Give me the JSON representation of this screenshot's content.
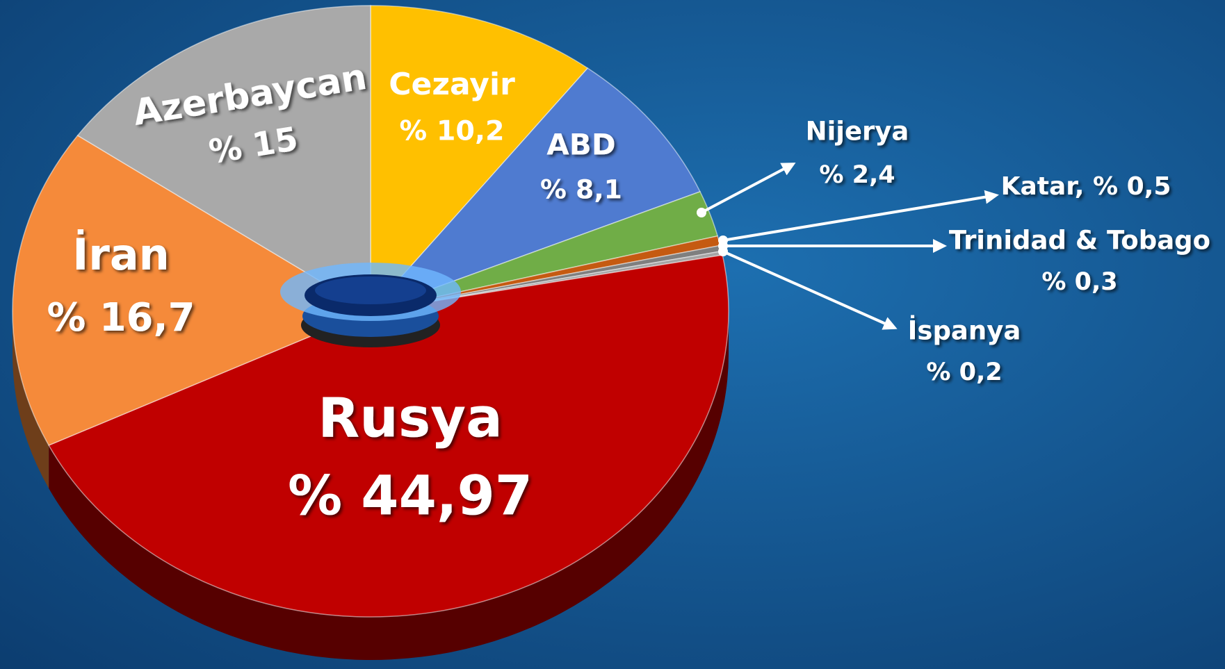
{
  "chart_data": {
    "type": "pie",
    "categories": [
      "Cezayir",
      "ABD",
      "Nijerya",
      "Katar,",
      "Trinidad & Tobago",
      "İspanya",
      "Rusya",
      "İran",
      "Azerbaycan"
    ],
    "values": [
      10.2,
      8.1,
      2.4,
      0.5,
      0.3,
      0.2,
      44.97,
      16.7,
      15
    ],
    "value_labels": [
      "% 10,2",
      "% 8,1",
      "% 2,4",
      "% 0,5",
      "% 0,3",
      "% 0,2",
      "% 44,97",
      "% 16,7",
      "% 15"
    ],
    "colors": [
      "#ffc000",
      "#4f7bd0",
      "#70ad47",
      "#c55a11",
      "#7f7f7f",
      "#a5a5a5",
      "#c00000",
      "#f58a3a",
      "#a9a9a9"
    ]
  }
}
